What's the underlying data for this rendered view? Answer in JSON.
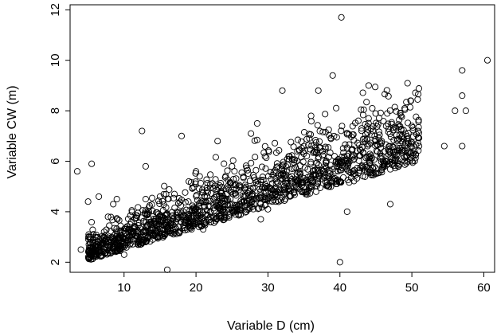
{
  "chart_data": {
    "type": "scatter",
    "xlabel": "Variable D (cm)",
    "ylabel": "Variable CW (m)",
    "xticks": [
      10,
      20,
      30,
      40,
      50,
      60
    ],
    "yticks": [
      2,
      4,
      6,
      8,
      10,
      12
    ],
    "xlim": [
      2.5,
      61.5
    ],
    "ylim": [
      1.6,
      12.2
    ],
    "marker": "open-circle",
    "grid": false,
    "colors": {
      "marker_stroke": "#000000",
      "axis": "#000000",
      "background": "#ffffff"
    },
    "series": [
      {
        "points_estimated_note_free": true,
        "x": [
          3.5,
          4.0,
          5.0,
          5.5,
          6.0,
          6.5,
          7.0,
          8.0,
          8.5,
          9.0,
          5.5,
          6.0,
          7.0,
          8.0,
          9.5,
          10.0,
          11.0,
          12.0,
          12.5,
          13.0,
          13.0,
          13.5,
          14.0,
          15.0,
          16.0,
          16.0,
          17.0,
          18.0,
          19.0,
          20.0,
          21.0,
          22.0,
          23.0,
          24.0,
          25.0,
          26.0,
          27.0,
          28.0,
          28.5,
          29.0,
          30.0,
          31.0,
          32.0,
          33.0,
          34.0,
          35.0,
          36.0,
          37.0,
          38.0,
          39.0,
          40.0,
          40.2,
          41.0,
          42.0,
          43.0,
          44.0,
          44.5,
          45.0,
          46.0,
          47.0,
          48.0,
          49.0,
          50.0,
          51.0,
          54.5,
          56.0,
          57.0,
          57.0,
          57.5,
          57.0,
          60.5
        ],
        "y": [
          5.6,
          2.5,
          4.4,
          5.9,
          2.8,
          4.6,
          2.7,
          2.6,
          4.3,
          4.5,
          2.6,
          3.0,
          2.8,
          2.9,
          3.2,
          2.3,
          3.6,
          2.7,
          7.2,
          4.5,
          5.8,
          3.1,
          2.9,
          4.6,
          1.7,
          3.4,
          4.7,
          7.0,
          5.2,
          5.6,
          3.3,
          4.0,
          6.8,
          4.3,
          5.8,
          5.0,
          4.0,
          4.5,
          7.5,
          3.7,
          4.1,
          5.3,
          8.8,
          6.2,
          5.0,
          6.6,
          7.8,
          8.8,
          6.5,
          9.4,
          2.0,
          11.7,
          4.0,
          6.1,
          7.3,
          9.0,
          8.1,
          5.5,
          6.0,
          4.3,
          6.4,
          8.1,
          7.4,
          6.6,
          6.6,
          8.0,
          9.6,
          8.6,
          8.0,
          6.6,
          10.0
        ]
      }
    ]
  }
}
